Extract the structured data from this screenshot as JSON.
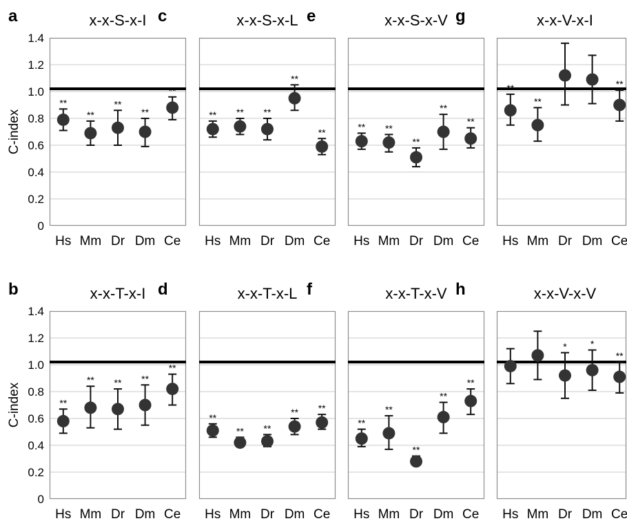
{
  "chart_data": [
    {
      "type": "scatter",
      "panel_letter": "a",
      "title": "x-x-S-x-I",
      "categories": [
        "Hs",
        "Mm",
        "Dr",
        "Dm",
        "Ce"
      ],
      "values": [
        0.79,
        0.69,
        0.73,
        0.7,
        0.88
      ],
      "ci_low": [
        0.71,
        0.6,
        0.6,
        0.59,
        0.79
      ],
      "ci_high": [
        0.87,
        0.78,
        0.86,
        0.8,
        0.96
      ],
      "significance": [
        "**",
        "**",
        "**",
        "**",
        "**"
      ],
      "reference_line": 1.0,
      "ylabel": "C-index",
      "ylim": [
        0,
        1.4
      ],
      "yticks": [
        "0",
        "0.2",
        "0.4",
        "0.6",
        "0.8",
        "1.0",
        "1.2",
        "1.4"
      ],
      "grid": true
    },
    {
      "type": "scatter",
      "panel_letter": "c",
      "title": "x-x-S-x-L",
      "categories": [
        "Hs",
        "Mm",
        "Dr",
        "Dm",
        "Ce"
      ],
      "values": [
        0.72,
        0.74,
        0.72,
        0.95,
        0.59
      ],
      "ci_low": [
        0.66,
        0.68,
        0.64,
        0.86,
        0.53
      ],
      "ci_high": [
        0.78,
        0.8,
        0.8,
        1.05,
        0.65
      ],
      "significance": [
        "**",
        "**",
        "**",
        "**",
        "**"
      ],
      "reference_line": 1.0,
      "ylim": [
        0,
        1.4
      ],
      "grid": true
    },
    {
      "type": "scatter",
      "panel_letter": "e",
      "title": "x-x-S-x-V",
      "categories": [
        "Hs",
        "Mm",
        "Dr",
        "Dm",
        "Ce"
      ],
      "values": [
        0.63,
        0.62,
        0.51,
        0.7,
        0.65
      ],
      "ci_low": [
        0.57,
        0.55,
        0.44,
        0.57,
        0.58
      ],
      "ci_high": [
        0.69,
        0.68,
        0.58,
        0.83,
        0.73
      ],
      "significance": [
        "**",
        "**",
        "**",
        "**",
        "**"
      ],
      "reference_line": 1.0,
      "ylim": [
        0,
        1.4
      ],
      "grid": true
    },
    {
      "type": "scatter",
      "panel_letter": "g",
      "title": "x-x-V-x-I",
      "categories": [
        "Hs",
        "Mm",
        "Dr",
        "Dm",
        "Ce"
      ],
      "values": [
        0.86,
        0.75,
        1.12,
        1.09,
        0.9
      ],
      "ci_low": [
        0.75,
        0.63,
        0.9,
        0.91,
        0.78
      ],
      "ci_high": [
        0.98,
        0.88,
        1.36,
        1.27,
        1.01
      ],
      "significance": [
        "**",
        "**",
        "",
        "",
        "**"
      ],
      "reference_line": 1.0,
      "ylim": [
        0,
        1.4
      ],
      "grid": true
    },
    {
      "type": "scatter",
      "panel_letter": "b",
      "title": "x-x-T-x-I",
      "categories": [
        "Hs",
        "Mm",
        "Dr",
        "Dm",
        "Ce"
      ],
      "values": [
        0.58,
        0.68,
        0.67,
        0.7,
        0.82
      ],
      "ci_low": [
        0.49,
        0.53,
        0.52,
        0.55,
        0.7
      ],
      "ci_high": [
        0.67,
        0.84,
        0.82,
        0.85,
        0.93
      ],
      "significance": [
        "**",
        "**",
        "**",
        "**",
        "**"
      ],
      "reference_line": 1.0,
      "ylabel": "C-index",
      "ylim": [
        0,
        1.4
      ],
      "yticks": [
        "0",
        "0.2",
        "0.4",
        "0.6",
        "0.8",
        "1.0",
        "1.2",
        "1.4"
      ],
      "grid": true
    },
    {
      "type": "scatter",
      "panel_letter": "d",
      "title": "x-x-T-x-L",
      "categories": [
        "Hs",
        "Mm",
        "Dr",
        "Dm",
        "Ce"
      ],
      "values": [
        0.51,
        0.42,
        0.43,
        0.54,
        0.57
      ],
      "ci_low": [
        0.46,
        0.39,
        0.39,
        0.48,
        0.52
      ],
      "ci_high": [
        0.56,
        0.46,
        0.48,
        0.6,
        0.63
      ],
      "significance": [
        "**",
        "**",
        "**",
        "**",
        "**"
      ],
      "reference_line": 1.0,
      "ylim": [
        0,
        1.4
      ],
      "grid": true
    },
    {
      "type": "scatter",
      "panel_letter": "f",
      "title": "x-x-T-x-V",
      "categories": [
        "Hs",
        "Mm",
        "Dr",
        "Dm",
        "Ce"
      ],
      "values": [
        0.45,
        0.49,
        0.28,
        0.61,
        0.73
      ],
      "ci_low": [
        0.39,
        0.37,
        0.25,
        0.49,
        0.63
      ],
      "ci_high": [
        0.52,
        0.62,
        0.32,
        0.72,
        0.82
      ],
      "significance": [
        "**",
        "**",
        "**",
        "**",
        "**"
      ],
      "reference_line": 1.0,
      "ylim": [
        0,
        1.4
      ],
      "grid": true
    },
    {
      "type": "scatter",
      "panel_letter": "h",
      "title": "x-x-V-x-V",
      "categories": [
        "Hs",
        "Mm",
        "Dr",
        "Dm",
        "Ce"
      ],
      "values": [
        0.99,
        1.07,
        0.92,
        0.96,
        0.91
      ],
      "ci_low": [
        0.86,
        0.89,
        0.75,
        0.81,
        0.79
      ],
      "ci_high": [
        1.12,
        1.25,
        1.09,
        1.11,
        1.02
      ],
      "significance": [
        "",
        "",
        "*",
        "*",
        "**"
      ],
      "reference_line": 1.0,
      "ylim": [
        0,
        1.4
      ],
      "grid": true
    }
  ],
  "colors": {
    "marker": "#333333",
    "reference_line": "#000000",
    "grid": "#c8c8c8",
    "frame": "#8c8c8c"
  }
}
